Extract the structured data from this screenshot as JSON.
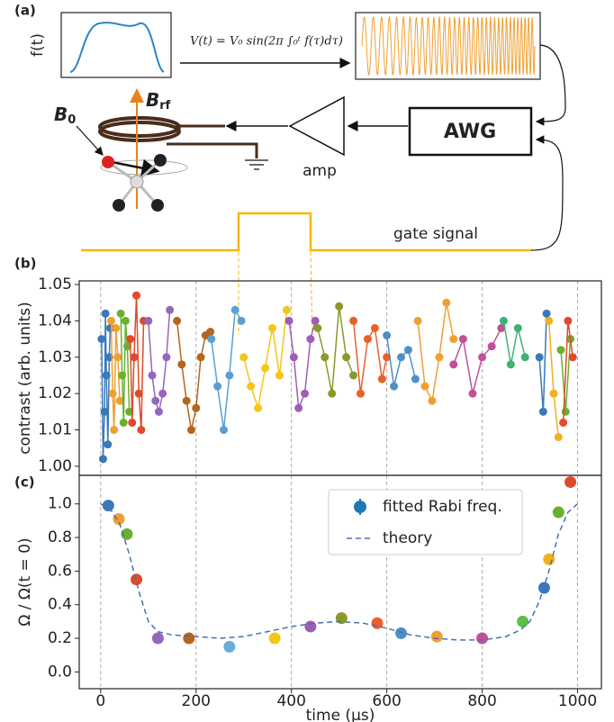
{
  "panel_a": {
    "label": "(a)",
    "f_label": "f(t)",
    "formula": "V(t) = V₀ sin(2π ∫₀ᵗ f(τ)dτ)",
    "b0": "B",
    "b0_sub": "0",
    "brf": "B",
    "brf_sub": "rf",
    "awg": "AWG",
    "amp": "amp",
    "gate": "gate signal"
  },
  "chart_data": [
    {
      "type": "line",
      "panel_label": "(b)",
      "ylabel": "contrast (arb. units)",
      "xlim": [
        -45,
        1050
      ],
      "ylim": [
        0.9975,
        1.051
      ],
      "yticks": [
        {
          "value": 1.0,
          "label": "1.00"
        },
        {
          "value": 1.01,
          "label": "1.01"
        },
        {
          "value": 1.02,
          "label": "1.02"
        },
        {
          "value": 1.03,
          "label": "1.03"
        },
        {
          "value": 1.04,
          "label": "1.04"
        },
        {
          "value": 1.05,
          "label": "1.05"
        }
      ],
      "series": [
        {
          "color": "#3b78b8",
          "x": [
            2,
            5,
            8,
            10,
            12,
            15,
            18,
            20
          ],
          "values": [
            1.035,
            1.002,
            1.015,
            1.042,
            1.025,
            1.006,
            1.03,
            1.038
          ]
        },
        {
          "color": "#f0a030",
          "x": [
            22,
            25,
            28,
            32,
            36,
            40
          ],
          "values": [
            1.04,
            1.02,
            1.01,
            1.038,
            1.03,
            1.018
          ]
        },
        {
          "color": "#6ab030",
          "x": [
            42,
            45,
            48,
            52,
            56,
            60
          ],
          "values": [
            1.042,
            1.025,
            1.012,
            1.04,
            1.033,
            1.015
          ]
        },
        {
          "color": "#e04a2a",
          "x": [
            62,
            66,
            70,
            75,
            80,
            85,
            90
          ],
          "values": [
            1.035,
            1.012,
            1.03,
            1.047,
            1.02,
            1.01,
            1.04
          ]
        },
        {
          "color": "#9467bd",
          "x": [
            100,
            108,
            115,
            122,
            130,
            138,
            145
          ],
          "values": [
            1.04,
            1.025,
            1.018,
            1.015,
            1.02,
            1.03,
            1.043
          ]
        },
        {
          "color": "#b5651d",
          "x": [
            160,
            170,
            180,
            190,
            200,
            210,
            220,
            230
          ],
          "values": [
            1.04,
            1.028,
            1.018,
            1.01,
            1.016,
            1.03,
            1.036,
            1.037
          ]
        },
        {
          "color": "#5a9fd4",
          "x": [
            232,
            245,
            258,
            270,
            282,
            295
          ],
          "values": [
            1.035,
            1.022,
            1.01,
            1.025,
            1.043,
            1.04
          ]
        },
        {
          "color": "#f5c518",
          "x": [
            300,
            315,
            330,
            345,
            360,
            375,
            390
          ],
          "values": [
            1.03,
            1.022,
            1.016,
            1.027,
            1.038,
            1.025,
            1.043
          ]
        },
        {
          "color": "#a05db5",
          "x": [
            395,
            405,
            415,
            428,
            440,
            450
          ],
          "values": [
            1.04,
            1.03,
            1.016,
            1.02,
            1.035,
            1.04
          ]
        },
        {
          "color": "#8a9a2a",
          "x": [
            455,
            470,
            485,
            500,
            515,
            530
          ],
          "values": [
            1.038,
            1.03,
            1.02,
            1.044,
            1.03,
            1.025
          ]
        },
        {
          "color": "#e8602a",
          "x": [
            530,
            545,
            560,
            575,
            590,
            600
          ],
          "values": [
            1.04,
            1.02,
            1.035,
            1.038,
            1.024,
            1.03
          ]
        },
        {
          "color": "#4f8fc8",
          "x": [
            600,
            615,
            630,
            645,
            660
          ],
          "values": [
            1.036,
            1.022,
            1.03,
            1.032,
            1.024
          ]
        },
        {
          "color": "#f0a030",
          "x": [
            665,
            680,
            695,
            710,
            725,
            740
          ],
          "values": [
            1.04,
            1.022,
            1.018,
            1.03,
            1.045,
            1.035
          ]
        },
        {
          "color": "#c0509a",
          "x": [
            740,
            760,
            780,
            800,
            820,
            840
          ],
          "values": [
            1.028,
            1.035,
            1.02,
            1.03,
            1.033,
            1.038
          ]
        },
        {
          "color": "#3cb371",
          "x": [
            845,
            860,
            875,
            890
          ],
          "values": [
            1.04,
            1.028,
            1.038,
            1.03
          ]
        },
        {
          "color": "#3b78b8",
          "x": [
            920,
            928,
            935
          ],
          "values": [
            1.03,
            1.015,
            1.042
          ]
        },
        {
          "color": "#f0b020",
          "x": [
            940,
            950,
            960
          ],
          "values": [
            1.04,
            1.02,
            1.008
          ]
        },
        {
          "color": "#6ab030",
          "x": [
            965,
            975,
            985
          ],
          "values": [
            1.032,
            1.015,
            1.035
          ]
        },
        {
          "color": "#e04a2a",
          "x": [
            970,
            980,
            990
          ],
          "values": [
            1.012,
            1.04,
            1.03
          ]
        }
      ]
    },
    {
      "type": "scatter",
      "panel_label": "(c)",
      "ylabel": "Ω / Ω(t = 0)",
      "xlabel": "time (µs)",
      "xlim": [
        -45,
        1050
      ],
      "ylim": [
        -0.1,
        1.17
      ],
      "xticks": [
        0,
        200,
        400,
        600,
        800,
        1000
      ],
      "yticks": [
        {
          "value": 0,
          "label": "0.0"
        },
        {
          "value": 0.2,
          "label": "0.2"
        },
        {
          "value": 0.4,
          "label": "0.4"
        },
        {
          "value": 0.6,
          "label": "0.6"
        },
        {
          "value": 0.8,
          "label": "0.8"
        },
        {
          "value": 1.0,
          "label": "1.0"
        }
      ],
      "legend": "upper right",
      "series": [
        {
          "name": "fitted Rabi freq.",
          "type": "scatter",
          "color": "#1f77b4",
          "x": [
            16,
            38,
            55,
            75,
            120,
            185,
            270,
            365,
            440,
            505,
            580,
            630,
            705,
            800,
            885,
            930,
            940,
            960,
            985
          ],
          "values": [
            0.99,
            0.91,
            0.82,
            0.55,
            0.2,
            0.2,
            0.15,
            0.2,
            0.27,
            0.32,
            0.29,
            0.23,
            0.21,
            0.2,
            0.3,
            0.5,
            0.67,
            0.95,
            1.13
          ],
          "colors": [
            "#3b78b8",
            "#f0a030",
            "#6ab030",
            "#e04a2a",
            "#9467bd",
            "#b5651d",
            "#6aaee0",
            "#f5c518",
            "#a05db5",
            "#8a9a2a",
            "#e8602a",
            "#4f8fc8",
            "#f0a030",
            "#c0509a",
            "#5cbf4a",
            "#3b78b8",
            "#f0b020",
            "#6ab030",
            "#e04a2a"
          ]
        },
        {
          "name": "theory",
          "type": "line",
          "dash": true,
          "color": "#4a6fb5",
          "x": [
            0,
            20,
            40,
            60,
            80,
            100,
            120,
            150,
            200,
            250,
            300,
            350,
            400,
            450,
            500,
            550,
            600,
            650,
            700,
            750,
            800,
            850,
            880,
            900,
            920,
            940,
            960,
            980,
            1000
          ],
          "values": [
            1.0,
            0.97,
            0.88,
            0.7,
            0.48,
            0.3,
            0.24,
            0.22,
            0.21,
            0.2,
            0.21,
            0.24,
            0.27,
            0.29,
            0.3,
            0.29,
            0.26,
            0.22,
            0.2,
            0.19,
            0.19,
            0.21,
            0.25,
            0.3,
            0.42,
            0.6,
            0.82,
            0.95,
            1.0
          ]
        }
      ]
    }
  ]
}
